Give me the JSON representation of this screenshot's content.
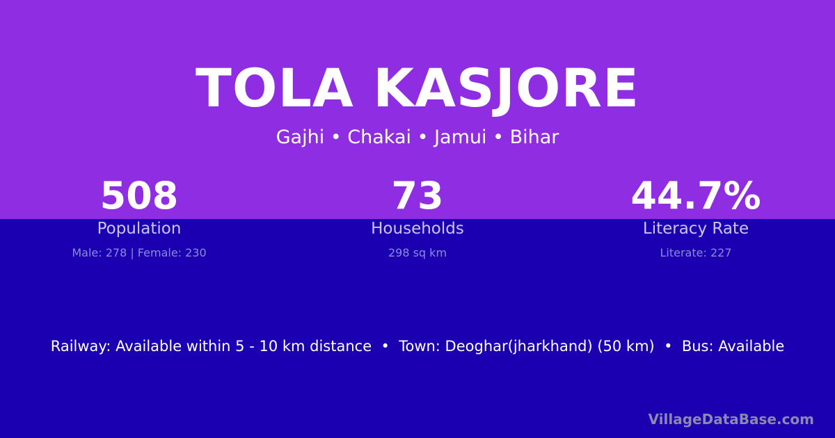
{
  "title": "TOLA KASJORE",
  "subtitle": "Gajhi • Chakai • Jamui • Bihar",
  "stats": [
    {
      "value": "508",
      "label": "Population",
      "detail": "Male: 278 | Female: 230"
    },
    {
      "value": "73",
      "label": "Households",
      "detail": "298 sq km"
    },
    {
      "value": "44.7%",
      "label": "Literacy Rate",
      "detail": "Literate: 227"
    }
  ],
  "info": "Railway: Available within 5 - 10 km distance  •  Town: Deoghar(jharkhand) (50 km)  •  Bus: Available",
  "brand": "VillageDataBase.com",
  "colors": {
    "top": "#8e2de2",
    "bottom": "#1a00b0"
  }
}
